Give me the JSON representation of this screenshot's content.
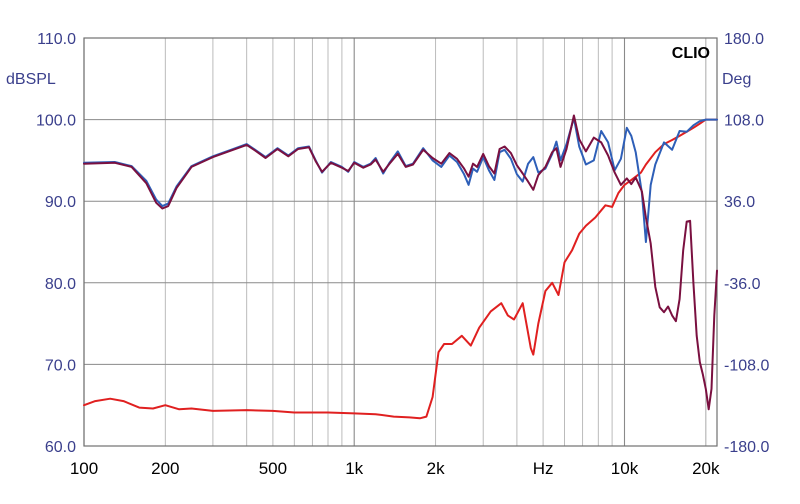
{
  "chart_data": {
    "type": "line",
    "brand": "CLIO",
    "ylabel_left": "dBSPL",
    "ylabel_right": "Deg",
    "xlabel": "Hz",
    "x_scale": "log",
    "xlim": [
      100,
      22000
    ],
    "ylim_left": [
      60,
      110
    ],
    "ylim_right": [
      -180,
      180
    ],
    "grid": true,
    "x_ticks": [
      {
        "value": 100,
        "label": "100"
      },
      {
        "value": 200,
        "label": "200"
      },
      {
        "value": 500,
        "label": "500"
      },
      {
        "value": 1000,
        "label": "1k"
      },
      {
        "value": 2000,
        "label": "2k"
      },
      {
        "value": 5000,
        "label": "Hz"
      },
      {
        "value": 10000,
        "label": "10k"
      },
      {
        "value": 20000,
        "label": "20k"
      }
    ],
    "y_ticks_left": [
      "60.0",
      "70.0",
      "80.0",
      "90.0",
      "100.0",
      "110.0"
    ],
    "y_ticks_right": [
      "-180.0",
      "-108.0",
      "-36.0",
      "36.0",
      "108.0",
      "180.0"
    ],
    "series": [
      {
        "color": "#e02020",
        "axis": "left",
        "points": [
          [
            100,
            65
          ],
          [
            110,
            65.5
          ],
          [
            125,
            65.8
          ],
          [
            140,
            65.5
          ],
          [
            160,
            64.7
          ],
          [
            180,
            64.6
          ],
          [
            200,
            65
          ],
          [
            225,
            64.5
          ],
          [
            250,
            64.6
          ],
          [
            300,
            64.3
          ],
          [
            400,
            64.4
          ],
          [
            500,
            64.3
          ],
          [
            600,
            64.1
          ],
          [
            700,
            64.1
          ],
          [
            800,
            64.1
          ],
          [
            1000,
            64
          ],
          [
            1200,
            63.9
          ],
          [
            1400,
            63.6
          ],
          [
            1600,
            63.5
          ],
          [
            1750,
            63.4
          ],
          [
            1850,
            63.6
          ],
          [
            1950,
            66
          ],
          [
            2050,
            71.5
          ],
          [
            2150,
            72.5
          ],
          [
            2300,
            72.5
          ],
          [
            2500,
            73.5
          ],
          [
            2700,
            72.3
          ],
          [
            2900,
            74.5
          ],
          [
            3200,
            76.5
          ],
          [
            3500,
            77.5
          ],
          [
            3700,
            76
          ],
          [
            3900,
            75.5
          ],
          [
            4200,
            77.5
          ],
          [
            4500,
            72
          ],
          [
            4600,
            71.2
          ],
          [
            4800,
            75
          ],
          [
            5100,
            79
          ],
          [
            5400,
            80
          ],
          [
            5700,
            78.5
          ],
          [
            6000,
            82.5
          ],
          [
            6400,
            84
          ],
          [
            6800,
            86
          ],
          [
            7200,
            87
          ],
          [
            7800,
            88
          ],
          [
            8500,
            89.5
          ],
          [
            9000,
            89.3
          ],
          [
            9500,
            91
          ],
          [
            10000,
            92
          ],
          [
            10500,
            92.5
          ],
          [
            11000,
            93
          ],
          [
            11500,
            93.5
          ],
          [
            12000,
            94.5
          ],
          [
            13000,
            96
          ],
          [
            14000,
            97
          ],
          [
            15000,
            97.5
          ],
          [
            16000,
            98
          ],
          [
            17000,
            98.5
          ],
          [
            18000,
            99
          ],
          [
            19000,
            99.5
          ],
          [
            20000,
            100
          ],
          [
            21000,
            100
          ],
          [
            22000,
            100
          ]
        ]
      },
      {
        "color": "#2e5fb8",
        "axis": "left",
        "points": [
          [
            100,
            94.7
          ],
          [
            130,
            94.8
          ],
          [
            150,
            94.3
          ],
          [
            170,
            92.5
          ],
          [
            185,
            90.2
          ],
          [
            195,
            89.4
          ],
          [
            205,
            89.7
          ],
          [
            220,
            91.8
          ],
          [
            250,
            94.3
          ],
          [
            300,
            95.5
          ],
          [
            350,
            96.3
          ],
          [
            400,
            97
          ],
          [
            430,
            96.3
          ],
          [
            470,
            95.4
          ],
          [
            520,
            96.5
          ],
          [
            570,
            95.6
          ],
          [
            620,
            96.5
          ],
          [
            680,
            96.7
          ],
          [
            720,
            95
          ],
          [
            760,
            93.5
          ],
          [
            820,
            94.8
          ],
          [
            900,
            94.2
          ],
          [
            950,
            93.6
          ],
          [
            1000,
            94.8
          ],
          [
            1080,
            94.2
          ],
          [
            1150,
            94.6
          ],
          [
            1200,
            95.3
          ],
          [
            1280,
            93.4
          ],
          [
            1350,
            94.7
          ],
          [
            1450,
            96.1
          ],
          [
            1550,
            94.3
          ],
          [
            1650,
            94.6
          ],
          [
            1800,
            96.5
          ],
          [
            1950,
            95
          ],
          [
            2100,
            94.2
          ],
          [
            2250,
            95.6
          ],
          [
            2400,
            94.8
          ],
          [
            2550,
            93.3
          ],
          [
            2650,
            92
          ],
          [
            2750,
            94
          ],
          [
            2850,
            93.6
          ],
          [
            3000,
            95.4
          ],
          [
            3150,
            93.8
          ],
          [
            3300,
            92.6
          ],
          [
            3450,
            96
          ],
          [
            3600,
            96.3
          ],
          [
            3800,
            95.2
          ],
          [
            4000,
            93.3
          ],
          [
            4200,
            92.4
          ],
          [
            4400,
            94.6
          ],
          [
            4600,
            95.4
          ],
          [
            4800,
            93.5
          ],
          [
            5100,
            94
          ],
          [
            5400,
            95.8
          ],
          [
            5600,
            97.3
          ],
          [
            5800,
            95
          ],
          [
            6100,
            97
          ],
          [
            6500,
            100.2
          ],
          [
            6800,
            96.7
          ],
          [
            7200,
            94.5
          ],
          [
            7700,
            95
          ],
          [
            8200,
            98.6
          ],
          [
            8700,
            97.2
          ],
          [
            9200,
            93.8
          ],
          [
            9700,
            95.2
          ],
          [
            10200,
            99
          ],
          [
            10600,
            98
          ],
          [
            11000,
            96
          ],
          [
            11600,
            91
          ],
          [
            12000,
            85
          ],
          [
            12500,
            92
          ],
          [
            13000,
            94.5
          ],
          [
            14000,
            97.2
          ],
          [
            15000,
            96.3
          ],
          [
            16000,
            98.6
          ],
          [
            17000,
            98.5
          ],
          [
            18000,
            99.3
          ],
          [
            19000,
            99.8
          ],
          [
            20000,
            100
          ],
          [
            22000,
            100
          ]
        ]
      },
      {
        "color": "#7a1040",
        "axis": "left",
        "points": [
          [
            100,
            94.6
          ],
          [
            130,
            94.7
          ],
          [
            150,
            94.2
          ],
          [
            170,
            92.2
          ],
          [
            185,
            89.8
          ],
          [
            195,
            89.1
          ],
          [
            205,
            89.4
          ],
          [
            220,
            91.6
          ],
          [
            250,
            94.2
          ],
          [
            300,
            95.4
          ],
          [
            350,
            96.2
          ],
          [
            400,
            96.9
          ],
          [
            430,
            96.2
          ],
          [
            470,
            95.3
          ],
          [
            520,
            96.4
          ],
          [
            570,
            95.5
          ],
          [
            620,
            96.4
          ],
          [
            680,
            96.6
          ],
          [
            720,
            94.9
          ],
          [
            760,
            93.6
          ],
          [
            820,
            94.7
          ],
          [
            900,
            94.1
          ],
          [
            950,
            93.7
          ],
          [
            1000,
            94.7
          ],
          [
            1080,
            94.1
          ],
          [
            1150,
            94.5
          ],
          [
            1200,
            95.1
          ],
          [
            1280,
            93.6
          ],
          [
            1350,
            94.6
          ],
          [
            1450,
            95.8
          ],
          [
            1550,
            94.2
          ],
          [
            1650,
            94.5
          ],
          [
            1800,
            96.3
          ],
          [
            1950,
            95.3
          ],
          [
            2100,
            94.6
          ],
          [
            2250,
            95.9
          ],
          [
            2400,
            95.2
          ],
          [
            2550,
            94
          ],
          [
            2650,
            93
          ],
          [
            2750,
            94.6
          ],
          [
            2850,
            94.2
          ],
          [
            3000,
            95.8
          ],
          [
            3150,
            94.3
          ],
          [
            3300,
            93.4
          ],
          [
            3450,
            96.4
          ],
          [
            3600,
            96.7
          ],
          [
            3800,
            95.9
          ],
          [
            4000,
            94.4
          ],
          [
            4200,
            93.4
          ],
          [
            4400,
            92.4
          ],
          [
            4600,
            91.4
          ],
          [
            4800,
            93.2
          ],
          [
            5100,
            94.2
          ],
          [
            5400,
            96
          ],
          [
            5600,
            96.5
          ],
          [
            5800,
            94.2
          ],
          [
            6100,
            96.4
          ],
          [
            6500,
            100.5
          ],
          [
            6800,
            97.6
          ],
          [
            7200,
            96.1
          ],
          [
            7700,
            97.8
          ],
          [
            8200,
            97.2
          ],
          [
            8700,
            95.6
          ],
          [
            9200,
            93.5
          ],
          [
            9700,
            92
          ],
          [
            10200,
            92.8
          ],
          [
            10600,
            92.1
          ],
          [
            11000,
            92.9
          ],
          [
            11600,
            91.2
          ],
          [
            12000,
            88
          ],
          [
            12500,
            84.8
          ],
          [
            13000,
            79.5
          ],
          [
            13500,
            77
          ],
          [
            14000,
            76.4
          ],
          [
            14500,
            77.1
          ],
          [
            15000,
            76
          ],
          [
            15500,
            75.3
          ],
          [
            16000,
            78
          ],
          [
            16500,
            84
          ],
          [
            17000,
            87.5
          ],
          [
            17500,
            87.6
          ],
          [
            18000,
            80
          ],
          [
            18500,
            73.5
          ],
          [
            19000,
            70.3
          ],
          [
            19500,
            68.8
          ],
          [
            20000,
            67
          ],
          [
            20500,
            64.5
          ],
          [
            21000,
            67
          ],
          [
            21500,
            76
          ],
          [
            22000,
            81.5
          ]
        ]
      }
    ]
  }
}
